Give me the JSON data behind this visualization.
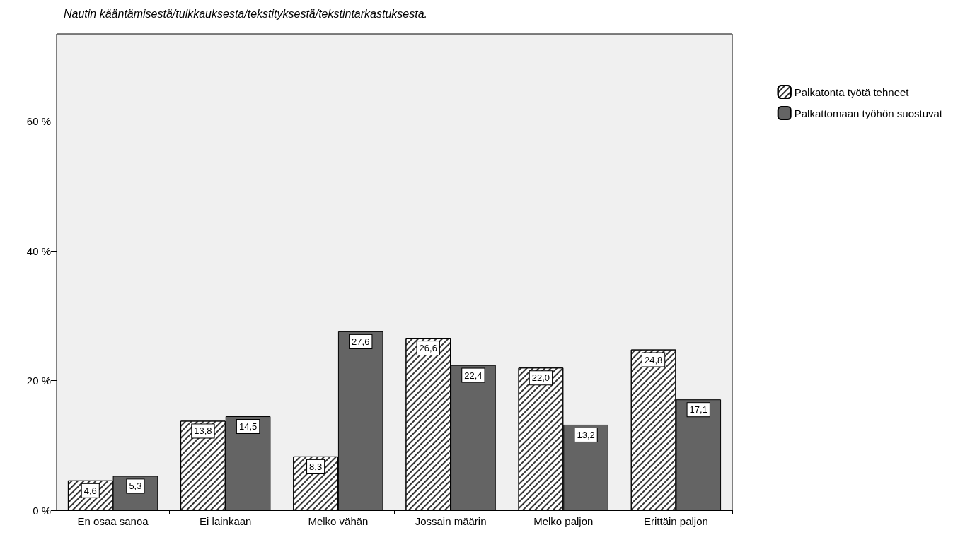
{
  "chart_data": {
    "type": "bar",
    "title": "Nautin kääntämisestä/tulkkauksesta/tekstityksestä/tekstintarkastuksesta.",
    "categories": [
      "En osaa sanoa",
      "Ei lainkaan",
      "Melko vähän",
      "Jossain määrin",
      "Melko paljon",
      "Erittäin paljon"
    ],
    "series": [
      {
        "name": "Palkatonta työtä tehneet",
        "color": "#ffffff",
        "values": [
          4.6,
          13.8,
          8.3,
          26.6,
          22.0,
          24.8
        ],
        "value_labels": [
          "4,6",
          "13,8",
          "8,3",
          "26,6",
          "22,0",
          "24,8"
        ]
      },
      {
        "name": "Palkattomaan työhön suostuvat",
        "color": "#646464",
        "values": [
          5.3,
          14.5,
          27.6,
          22.4,
          13.2,
          17.1
        ],
        "value_labels": [
          "5,3",
          "14,5",
          "27,6",
          "22,4",
          "13,2",
          "17,1"
        ]
      }
    ],
    "ylim": [
      0,
      73.5
    ],
    "yticks": [
      {
        "value": 0,
        "label": "0 %"
      },
      {
        "value": 20,
        "label": "20 %"
      },
      {
        "value": 40,
        "label": "40 %"
      },
      {
        "value": 60,
        "label": "60 %"
      }
    ],
    "grid": false,
    "legend": "right"
  }
}
